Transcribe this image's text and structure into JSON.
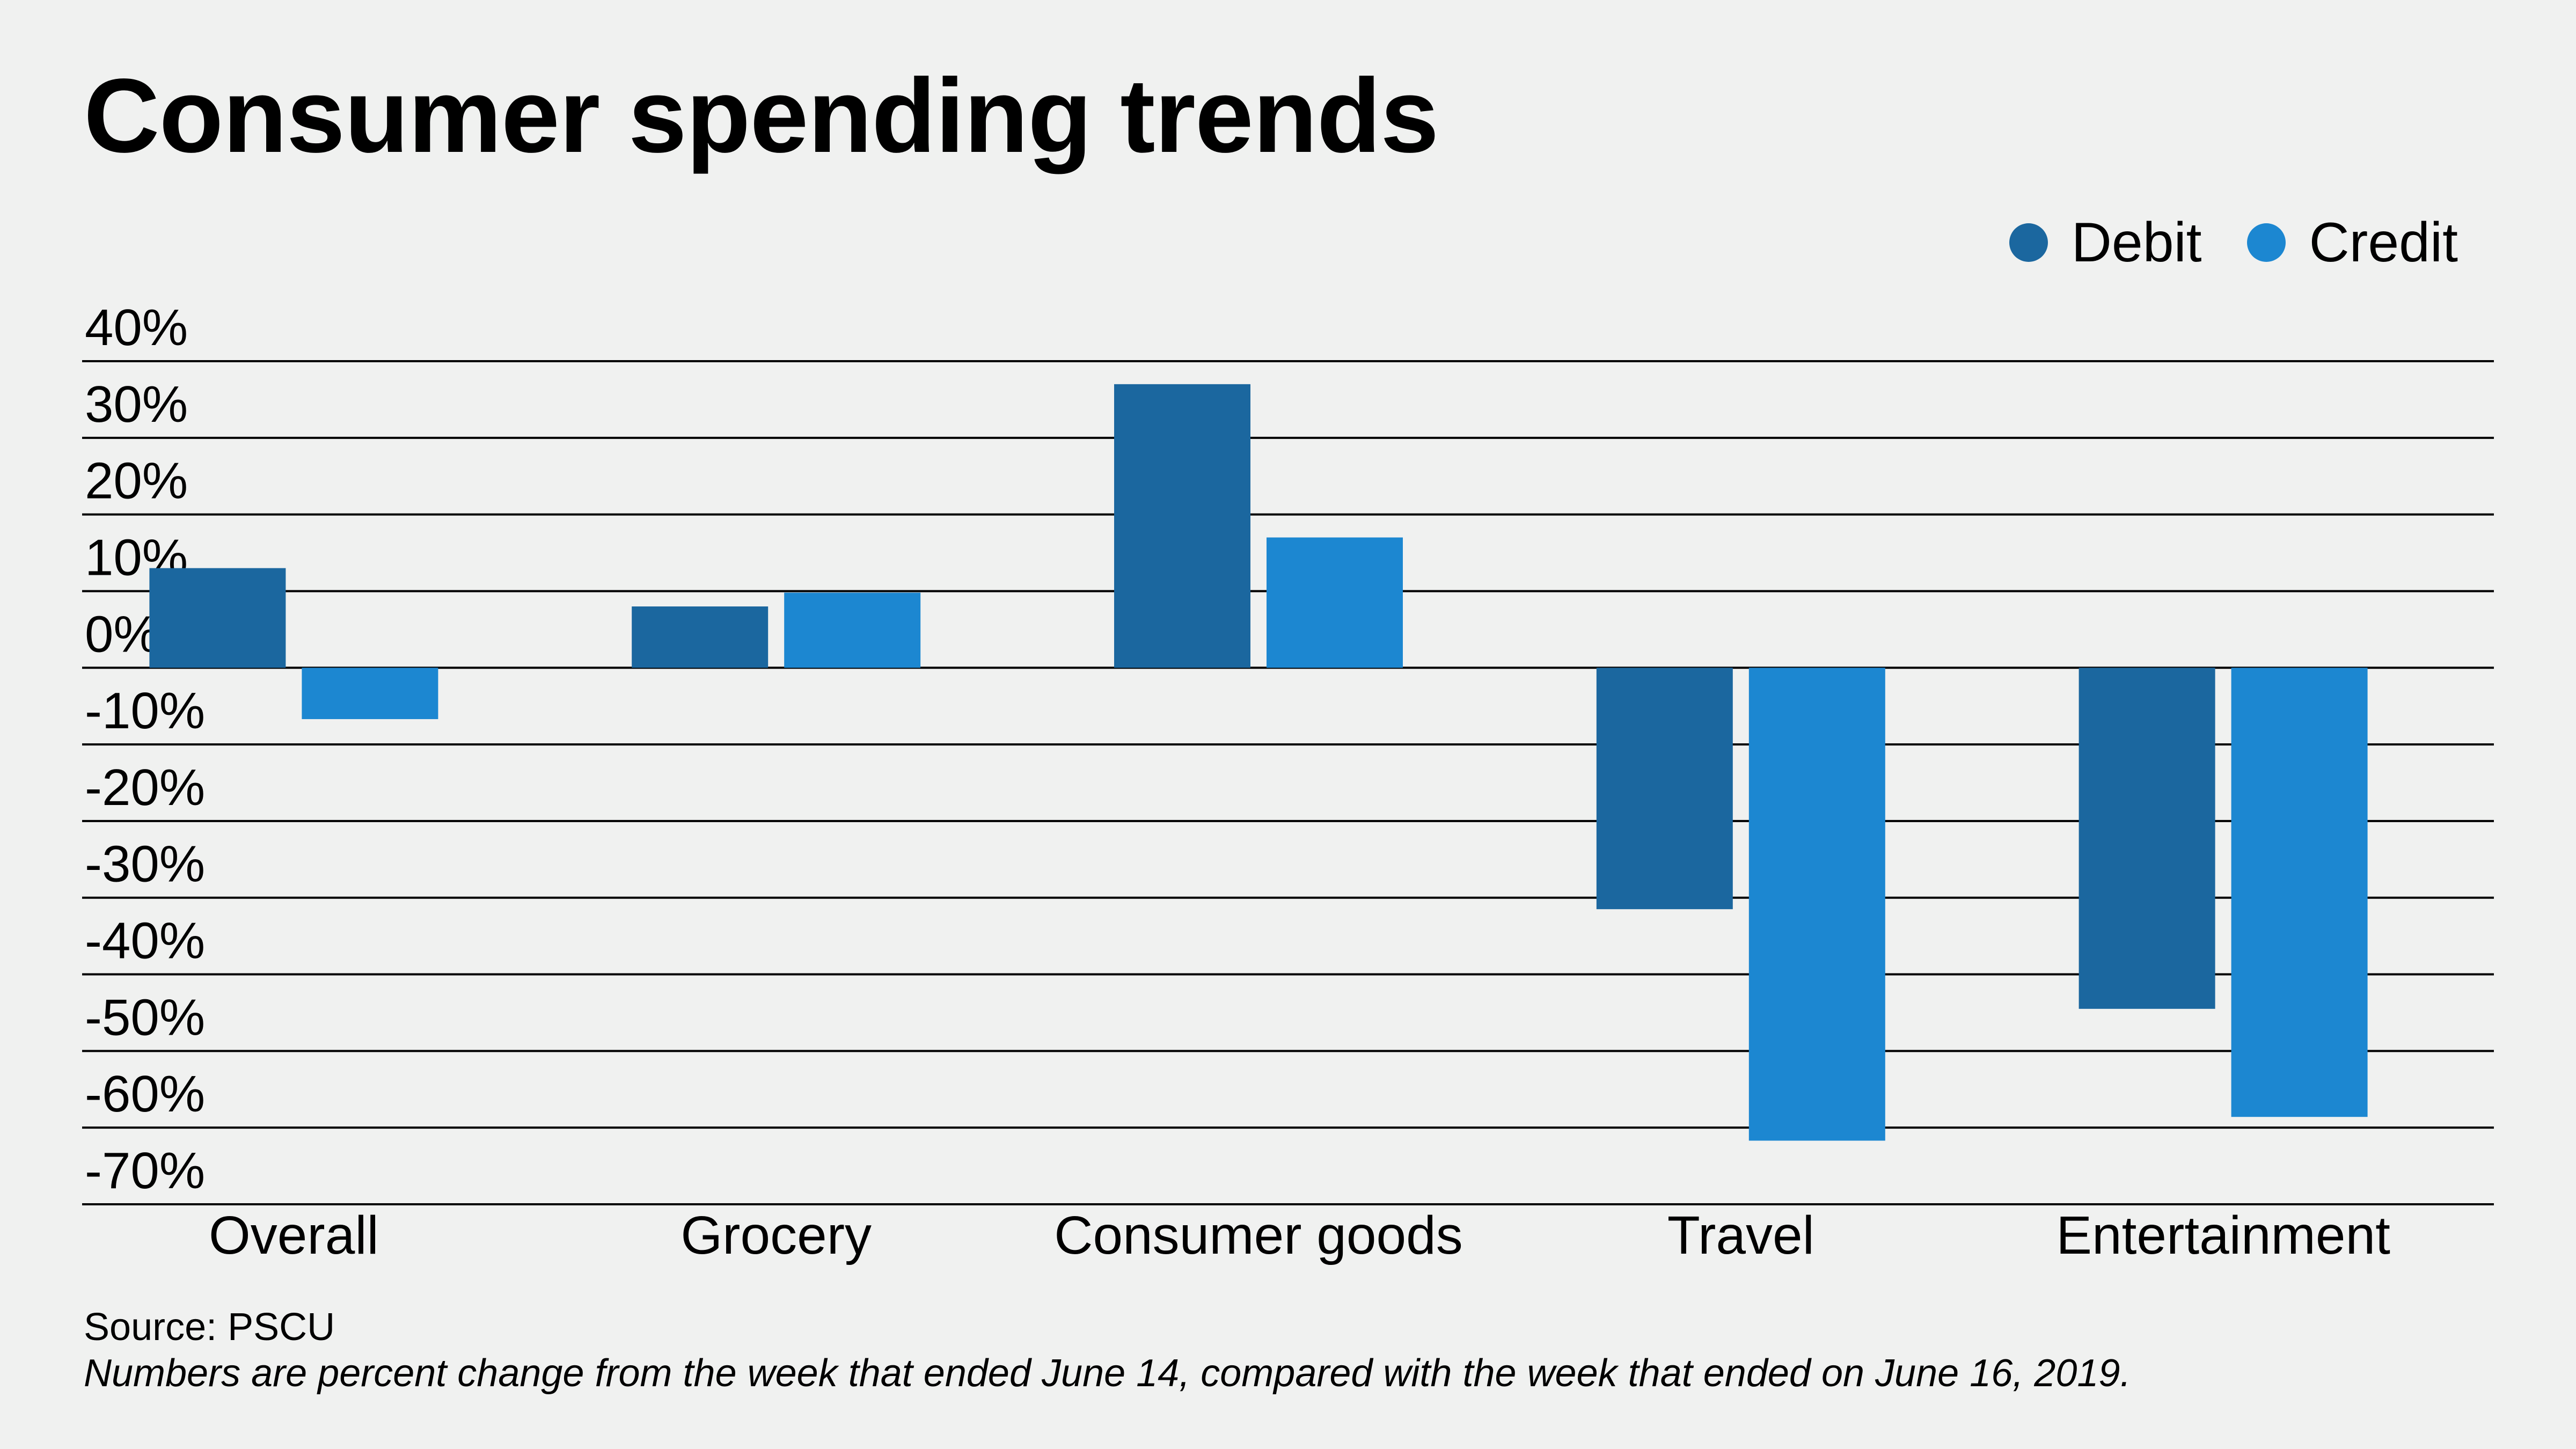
{
  "chart_data": {
    "type": "bar",
    "title": "Consumer spending trends",
    "xlabel": "",
    "ylabel": "",
    "categories": [
      "Overall",
      "Grocery",
      "Consumer goods",
      "Travel",
      "Entertainment"
    ],
    "series": [
      {
        "name": "Debit",
        "color": "#1b679f",
        "values": [
          13,
          8,
          37,
          -31.5,
          -44.5
        ]
      },
      {
        "name": "Credit",
        "color": "#1c87d1",
        "values": [
          -6.7,
          9.8,
          17,
          -61.7,
          -58.6
        ]
      }
    ],
    "ylim": [
      -70,
      40
    ],
    "yticks": [
      40,
      30,
      20,
      10,
      0,
      -10,
      -20,
      -30,
      -40,
      -50,
      -60,
      -70
    ],
    "ytick_labels": [
      "40%",
      "30%",
      "20%",
      "10%",
      "0%",
      "-10%",
      "-20%",
      "-30%",
      "-40%",
      "-50%",
      "-60%",
      "-70%"
    ],
    "grid": true,
    "legend_position": "top-right",
    "source": "Source: PSCU",
    "note": "Numbers are percent change from the week that ended June 14, compared with the week that ended on June 16, 2019."
  }
}
